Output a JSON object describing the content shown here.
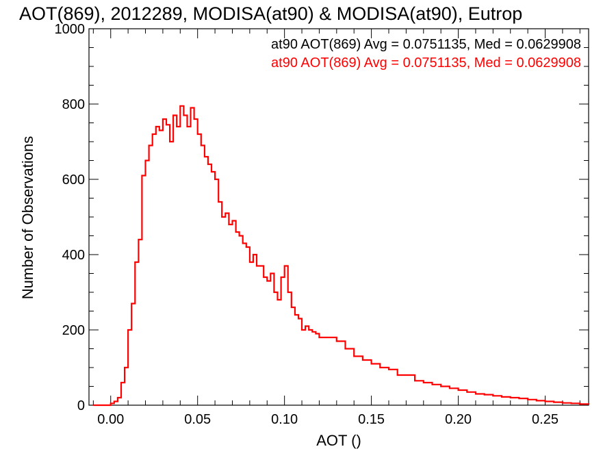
{
  "chart_data": {
    "type": "histogram-step",
    "title": "AOT(869), 2012289, MODISA(at90) & MODISA(at90), Eutrop",
    "xlabel": "AOT ()",
    "ylabel": "Number of Observations",
    "xlim": [
      -0.0125,
      0.275
    ],
    "ylim": [
      0,
      1000
    ],
    "x_ticks": [
      0.0,
      0.05,
      0.1,
      0.15,
      0.2,
      0.25
    ],
    "x_tick_labels": [
      "0.00",
      "0.05",
      "0.10",
      "0.15",
      "0.20",
      "0.25"
    ],
    "y_ticks": [
      0,
      200,
      400,
      600,
      800,
      1000
    ],
    "y_tick_labels": [
      "0",
      "200",
      "400",
      "600",
      "800",
      "1000"
    ],
    "annotations": [
      {
        "text": "at90 AOT(869) Avg = 0.0751135, Med = 0.0629908",
        "color": "#000000"
      },
      {
        "text": "at90 AOT(869) Avg = 0.0751135, Med = 0.0629908",
        "color": "#ff0000"
      }
    ],
    "grid": false,
    "series": [
      {
        "color": "#ff0000",
        "line_color": "#000000",
        "x": [
          -0.01,
          0,
          0.002,
          0.004,
          0.006,
          0.008,
          0.01,
          0.012,
          0.014,
          0.016,
          0.018,
          0.02,
          0.022,
          0.024,
          0.026,
          0.028,
          0.03,
          0.032,
          0.034,
          0.036,
          0.038,
          0.04,
          0.042,
          0.044,
          0.046,
          0.048,
          0.05,
          0.052,
          0.054,
          0.056,
          0.058,
          0.06,
          0.062,
          0.064,
          0.066,
          0.068,
          0.07,
          0.072,
          0.074,
          0.076,
          0.078,
          0.08,
          0.082,
          0.084,
          0.086,
          0.088,
          0.09,
          0.092,
          0.094,
          0.096,
          0.098,
          0.1,
          0.102,
          0.104,
          0.106,
          0.108,
          0.11,
          0.112,
          0.114,
          0.116,
          0.118,
          0.12,
          0.125,
          0.13,
          0.135,
          0.14,
          0.145,
          0.15,
          0.155,
          0.16,
          0.165,
          0.17,
          0.175,
          0.18,
          0.185,
          0.19,
          0.195,
          0.2,
          0.205,
          0.21,
          0.215,
          0.22,
          0.225,
          0.23,
          0.235,
          0.24,
          0.245,
          0.25,
          0.255,
          0.26,
          0.265,
          0.27,
          0.275
        ],
        "y": [
          0,
          5,
          10,
          20,
          60,
          100,
          200,
          270,
          380,
          440,
          610,
          650,
          690,
          720,
          740,
          730,
          760,
          745,
          700,
          770,
          740,
          795,
          770,
          740,
          790,
          760,
          720,
          690,
          660,
          640,
          620,
          600,
          540,
          500,
          510,
          480,
          490,
          460,
          450,
          430,
          420,
          380,
          400,
          370,
          370,
          340,
          330,
          350,
          300,
          280,
          340,
          370,
          300,
          260,
          240,
          230,
          200,
          210,
          200,
          195,
          190,
          180,
          180,
          170,
          150,
          130,
          120,
          110,
          100,
          95,
          80,
          80,
          65,
          60,
          55,
          50,
          45,
          40,
          35,
          30,
          28,
          25,
          22,
          20,
          18,
          15,
          12,
          10,
          8,
          6,
          5,
          3,
          2
        ]
      }
    ]
  }
}
